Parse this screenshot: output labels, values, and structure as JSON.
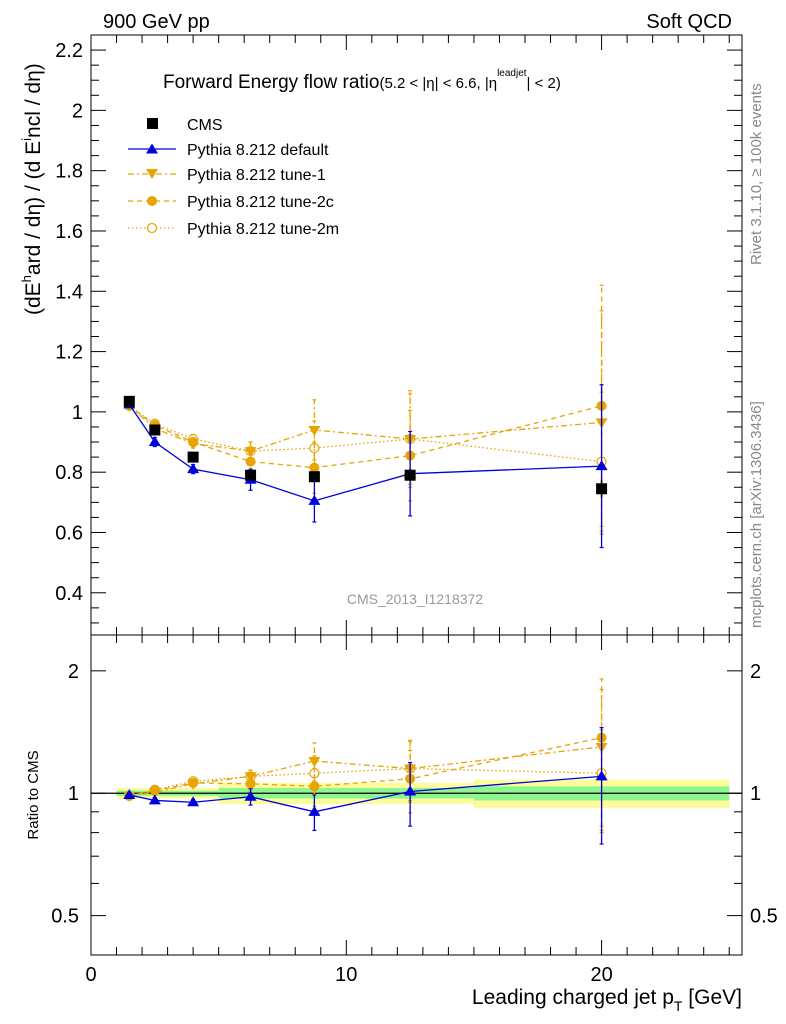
{
  "header": {
    "left": "900 GeV pp",
    "right": "Soft QCD"
  },
  "side_labels": {
    "rivet": "Rivet 3.1.10, ≥ 100k events",
    "mcplots": "mcplots.cern.ch [arXiv:1306.3436]"
  },
  "watermark": "CMS_2013_I1218372",
  "colors": {
    "cms": "#000000",
    "default": "#0000dd",
    "tune": "#e8a400",
    "band_inner": "#8ff58f",
    "band_outer": "#fdfc9c"
  },
  "chart_data": [
    {
      "type": "line",
      "title": "Forward Energy flow ratio",
      "title_suffix": "(5.2 < |η| < 6.6, |η",
      "title_sup": "leadjet",
      "title_end": "| < 2)",
      "ylabel": "(dE^hard / dη) / (d E^incl / dη)",
      "xlim": [
        0,
        25.5
      ],
      "ylim": [
        0.26,
        2.25
      ],
      "yticks": [
        "0.4",
        "0.6",
        "0.8",
        "1",
        "1.2",
        "1.4",
        "1.6",
        "1.8",
        "2",
        "2.2"
      ],
      "legend": [
        "CMS",
        "Pythia 8.212 default",
        "Pythia 8.212 tune-1",
        "Pythia 8.212 tune-2c",
        "Pythia 8.212 tune-2m"
      ],
      "x": [
        1.5,
        2.5,
        4.0,
        6.25,
        8.75,
        12.5,
        20.0
      ],
      "series": [
        {
          "name": "CMS",
          "values": [
            1.035,
            0.94,
            0.85,
            0.79,
            0.785,
            0.79,
            0.745
          ],
          "errors": [
            0.005,
            0.005,
            0.005,
            0.01,
            0.01,
            0.02,
            0.03
          ]
        },
        {
          "name": "Pythia 8.212 default",
          "values": [
            1.025,
            0.9,
            0.81,
            0.775,
            0.705,
            0.795,
            0.82
          ],
          "errors": [
            0.01,
            0.015,
            0.015,
            0.035,
            0.07,
            0.14,
            0.27
          ]
        },
        {
          "name": "Pythia 8.212 tune-1",
          "values": [
            1.02,
            0.945,
            0.895,
            0.87,
            0.94,
            0.91,
            0.965
          ],
          "errors": [
            0.01,
            0.015,
            0.015,
            0.03,
            0.1,
            0.16,
            0.37
          ]
        },
        {
          "name": "Pythia 8.212 tune-2c",
          "values": [
            1.02,
            0.955,
            0.9,
            0.835,
            0.815,
            0.855,
            1.02
          ],
          "errors": [
            0.01,
            0.015,
            0.015,
            0.035,
            0.085,
            0.15,
            0.4
          ]
        },
        {
          "name": "Pythia 8.212 tune-2m",
          "values": [
            1.02,
            0.96,
            0.91,
            0.87,
            0.88,
            0.91,
            0.835
          ],
          "errors": [
            0.01,
            0.015,
            0.015,
            0.03,
            0.09,
            0.15,
            0.23
          ]
        }
      ]
    },
    {
      "type": "line",
      "title": "",
      "xlabel": "Leading charged jet p",
      "xlabel_sub": "T",
      "xlabel_unit": " [GeV]",
      "ylabel": "Ratio to CMS",
      "yscale": "log",
      "xlim": [
        0,
        25.5
      ],
      "ylim": [
        0.4,
        2.45
      ],
      "xticks": [
        "0",
        "10",
        "20"
      ],
      "yticks": [
        "0.5",
        "1",
        "2"
      ],
      "x": [
        1.5,
        2.5,
        4.0,
        6.25,
        8.75,
        12.5,
        20.0
      ],
      "bands": [
        {
          "x0": 1.0,
          "x1": 5.0,
          "inner": 0.015,
          "outer": 0.03
        },
        {
          "x0": 5.0,
          "x1": 15.0,
          "inner": 0.03,
          "outer": 0.06
        },
        {
          "x0": 15.0,
          "x1": 25.0,
          "inner": 0.04,
          "outer": 0.08
        }
      ],
      "series": [
        {
          "name": "Pythia 8.212 default",
          "values": [
            0.99,
            0.96,
            0.95,
            0.98,
            0.9,
            1.01,
            1.1
          ],
          "errors": [
            0.01,
            0.015,
            0.015,
            0.045,
            0.09,
            0.18,
            0.35
          ]
        },
        {
          "name": "Pythia 8.212 tune-1",
          "values": [
            0.985,
            1.005,
            1.055,
            1.1,
            1.2,
            1.15,
            1.3
          ],
          "errors": [
            0.01,
            0.015,
            0.015,
            0.04,
            0.13,
            0.2,
            0.5
          ]
        },
        {
          "name": "Pythia 8.212 tune-2c",
          "values": [
            0.985,
            1.015,
            1.06,
            1.055,
            1.04,
            1.085,
            1.37
          ],
          "errors": [
            0.01,
            0.015,
            0.015,
            0.045,
            0.11,
            0.19,
            0.54
          ]
        },
        {
          "name": "Pythia 8.212 tune-2m",
          "values": [
            0.985,
            1.02,
            1.07,
            1.1,
            1.12,
            1.15,
            1.12
          ],
          "errors": [
            0.01,
            0.015,
            0.015,
            0.04,
            0.115,
            0.19,
            0.31
          ]
        }
      ]
    }
  ]
}
